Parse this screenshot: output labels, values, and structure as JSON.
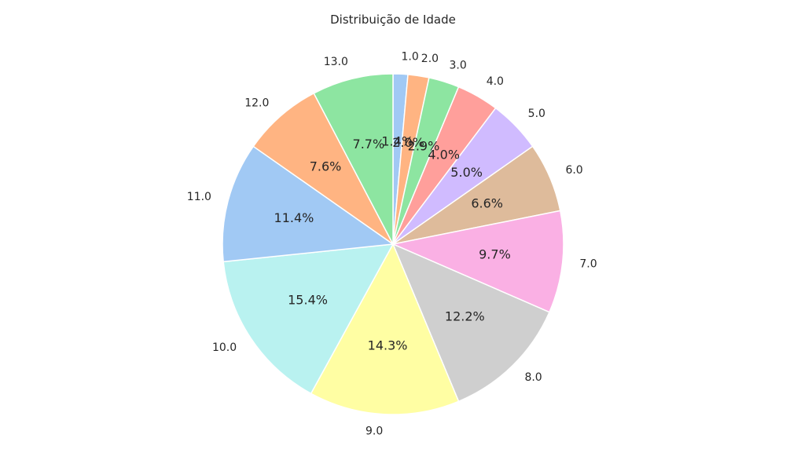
{
  "chart_data": {
    "type": "pie",
    "title": "Distribuição de Idade",
    "labels": [
      "1.0",
      "2.0",
      "3.0",
      "4.0",
      "5.0",
      "6.0",
      "7.0",
      "8.0",
      "9.0",
      "10.0",
      "11.0",
      "12.0",
      "13.0"
    ],
    "values": [
      1.4,
      2.0,
      2.9,
      4.0,
      5.0,
      6.6,
      9.7,
      12.2,
      14.3,
      15.4,
      11.4,
      7.6,
      7.7
    ],
    "value_labels": [
      "1.4%",
      "2.0%",
      "2.9%",
      "4.0%",
      "5.0%",
      "6.6%",
      "9.7%",
      "12.2%",
      "14.3%",
      "15.4%",
      "11.4%",
      "7.6%",
      "7.7%"
    ],
    "colors": [
      "#a1c9f4",
      "#ffb482",
      "#8de5a1",
      "#ff9f9b",
      "#d0bbff",
      "#debb9b",
      "#fab0e4",
      "#cfcfcf",
      "#fffea3",
      "#b9f2f0",
      "#a1c9f4",
      "#ffb482",
      "#8de5a1"
    ],
    "start_angle_deg": 90,
    "direction": "clockwise"
  }
}
